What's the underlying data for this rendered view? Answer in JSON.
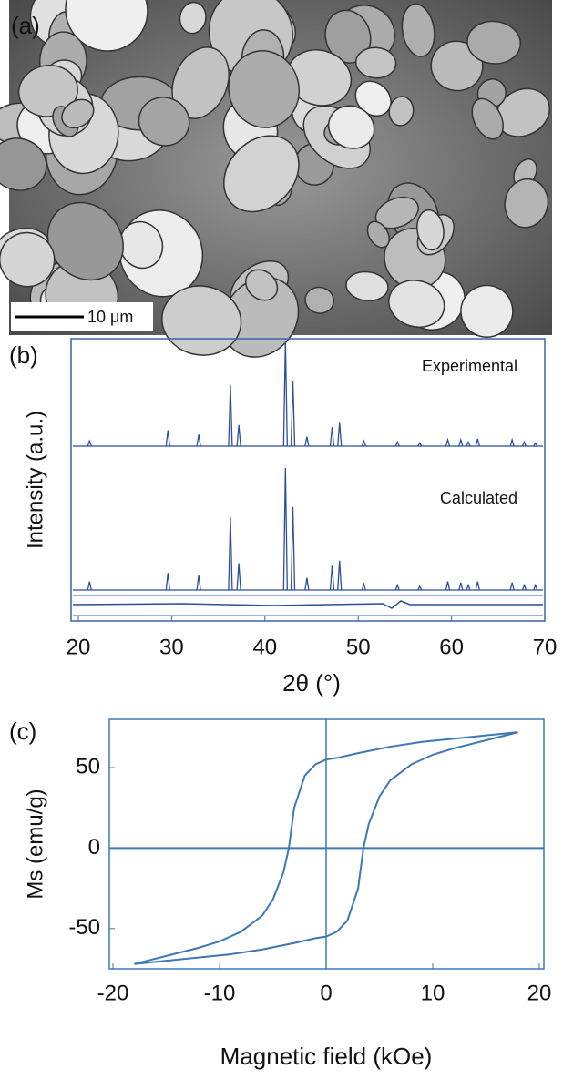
{
  "image": {
    "panel_label": "(a)",
    "scale_bar": "10 μm"
  },
  "chart_data": [
    {
      "type": "stick",
      "panel_label": "(b)",
      "y_label": "Intensity (a.u.)",
      "x_label": "2θ (°)",
      "xlim": [
        20,
        70
      ],
      "xticks": [
        20,
        30,
        40,
        50,
        60,
        70
      ],
      "ylim": [
        0,
        100
      ],
      "series": [
        {
          "name": "Experimental",
          "color": "#2b4e9e",
          "x": [
            21.2,
            29.6,
            32.9,
            36.3,
            37.2,
            42.2,
            43.0,
            44.5,
            47.2,
            48.0,
            50.6,
            54.2,
            56.6,
            59.6,
            61.0,
            61.8,
            62.8,
            66.5,
            67.8,
            69.0
          ],
          "values": [
            5,
            15,
            11,
            58,
            20,
            100,
            62,
            9,
            18,
            22,
            5,
            4,
            3,
            6,
            6,
            4,
            7,
            6,
            4,
            3
          ]
        },
        {
          "name": "Calculated",
          "color": "#2b4e9e",
          "x": [
            21.2,
            29.6,
            32.9,
            36.3,
            37.2,
            42.2,
            43.0,
            44.5,
            47.2,
            48.0,
            50.6,
            54.2,
            56.6,
            59.6,
            61.0,
            61.8,
            62.8,
            66.5,
            67.8,
            69.0
          ],
          "values": [
            7,
            14,
            12,
            60,
            22,
            100,
            68,
            10,
            20,
            24,
            5,
            4,
            3,
            7,
            6,
            4,
            7,
            6,
            4,
            4
          ]
        }
      ]
    },
    {
      "type": "line",
      "panel_label": "(c)",
      "y_label": "Ms (emu/g)",
      "x_label": "Magnetic field (kOe)",
      "xlim": [
        -20,
        20
      ],
      "xticks": [
        -20,
        -10,
        0,
        10,
        20
      ],
      "ylim": [
        -75,
        80
      ],
      "yticks": [
        -50,
        0,
        50
      ],
      "series": [
        {
          "color": "#3d78b6",
          "x": [
            18,
            15,
            12,
            9,
            6,
            3,
            1,
            0,
            -1,
            -2,
            -3,
            -3.5,
            -4,
            -5,
            -6,
            -8,
            -10,
            -12,
            -15,
            -18
          ],
          "values": [
            72,
            70,
            68,
            66,
            63,
            59,
            56,
            55,
            52,
            45,
            25,
            0,
            -15,
            -32,
            -42,
            -52,
            -58,
            -62,
            -67,
            -72
          ]
        },
        {
          "color": "#3d78b6",
          "x": [
            -18,
            -15,
            -12,
            -9,
            -6,
            -3,
            -1,
            0,
            1,
            2,
            3,
            3.5,
            4,
            5,
            6,
            8,
            10,
            12,
            15,
            18
          ],
          "values": [
            -72,
            -70,
            -68,
            -66,
            -63,
            -59,
            -56,
            -55,
            -52,
            -45,
            -25,
            0,
            15,
            32,
            42,
            52,
            58,
            62,
            67,
            72
          ]
        }
      ]
    }
  ]
}
